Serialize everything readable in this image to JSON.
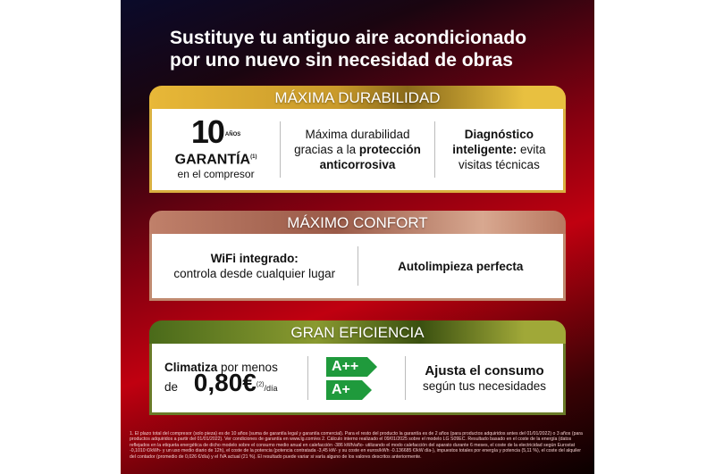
{
  "title_line1": "Sustituye tu antiguo aire acondicionado",
  "title_line2": "por uno nuevo sin necesidad de obras",
  "durabilidad": {
    "header": "MÁXIMA DURABILIDAD",
    "years": "10",
    "years_unit": "AÑOS",
    "garantia": "GARANTÍA",
    "garantia_note": "(1)",
    "compresor": "en el compresor",
    "col2_a": "Máxima durabilidad",
    "col2_b": "gracias a la ",
    "col2_bold1": "protección",
    "col2_bold2": "anticorrosiva",
    "col3_bold1": "Diagnóstico",
    "col3_bold2": "inteligente:",
    "col3_a": " evita",
    "col3_b": "visitas técnicas"
  },
  "confort": {
    "header": "MÁXIMO CONFORT",
    "col1_bold": "WiFi integrado:",
    "col1_text": "controla desde cualquier lugar",
    "col2_bold": "Autolimpieza perfecta"
  },
  "eficiencia": {
    "header": "GRAN EFICIENCIA",
    "climatiza": "Climatiza",
    "por_menos": " por menos",
    "de": "de",
    "price": "0,80€",
    "price_note": "(2)",
    "per_day": "/día",
    "badge1": "A++",
    "badge2": "A+",
    "col3_bold": "Ajusta el consumo",
    "col3_text": "según tus necesidades"
  },
  "footnote": "1. El plazo total del compresor (solo pieza) es de 10 años (suma de garantía legal y garantía comercial). Para el resto del producto la garantía es de 2 años (para productos adquiridos antes del 01/01/2022) o 3 años (para productos adquiridos a partir del 01/01/2022). Ver condiciones de garantía en www.lg.com/es 2. Cálculo interno realizado el 09/01/2025 sobre el modelo LG S09EC. Resultado basado en el coste de la energía (datos reflejados en la etiqueta energética de dicho modelo sobre el consumo medio anual en calefacción -386 kWh/año- utilizando el modo calefacción del aparato durante 6 meses, el coste de la electricidad según Eurostat -0,1010 €/kWh- y un uso medio diario de 12h), el coste de la potencia (potencia contratada -3,45 kW- y su coste en euros/kWh -0.136685 €/kW día-), impuestos totales por energía y potencia (5,11 %), el coste del alquiler del contador (promedio de 0,026 €/día) y el IVA actual (21 %). El resultado puede variar si varía alguno de los valores descritos anteriormente.",
  "colors": {
    "gold": "#c9a227",
    "copper": "#b0735a",
    "olive": "#7a8a2a",
    "energy_green": "#1f9a3c"
  }
}
